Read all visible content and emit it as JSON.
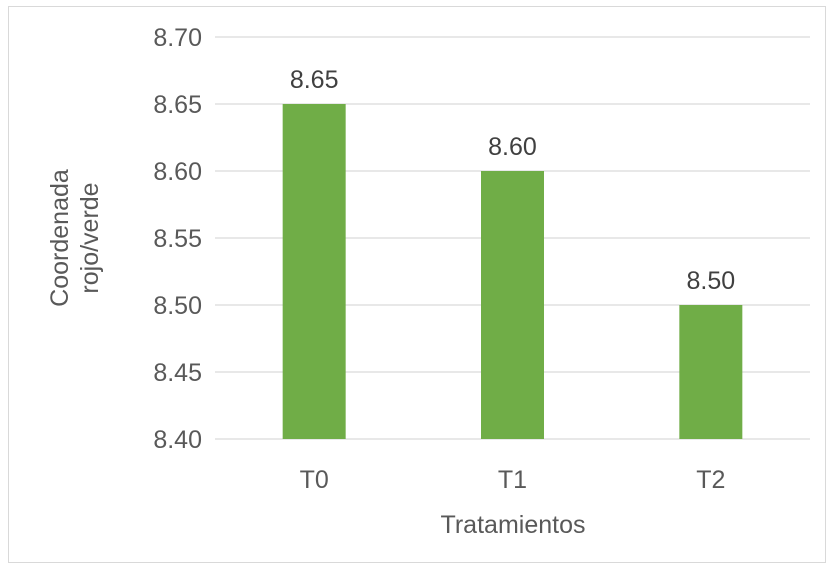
{
  "chart_data": {
    "type": "bar",
    "categories": [
      "T0",
      "T1",
      "T2"
    ],
    "values": [
      8.65,
      8.6,
      8.5
    ],
    "data_labels": [
      "8.65",
      "8.60",
      "8.50"
    ],
    "title": "",
    "xlabel": "Tratamientos",
    "ylabel_lines": [
      "Coordenada",
      "rojo/verde"
    ],
    "ylim": [
      8.4,
      8.7
    ],
    "yticks": [
      "8.40",
      "8.45",
      "8.50",
      "8.55",
      "8.60",
      "8.65",
      "8.70"
    ],
    "grid": true,
    "legend": "none",
    "bar_color": "#70AD47",
    "grid_color": "#D9D9D9"
  }
}
